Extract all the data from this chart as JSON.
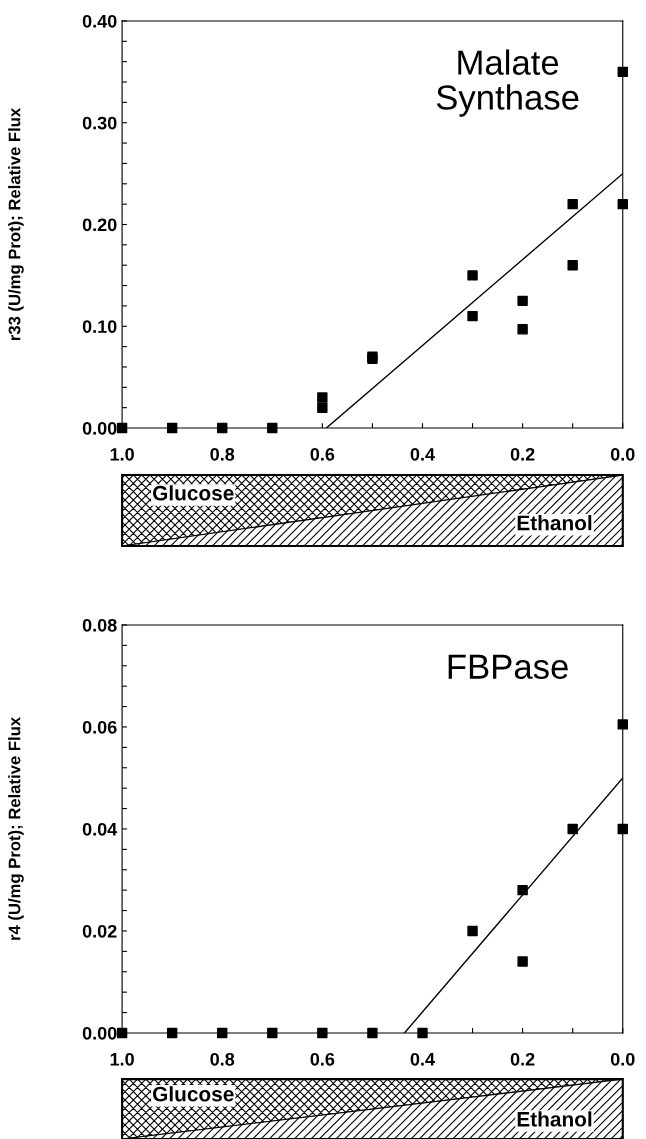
{
  "chart_data": [
    {
      "type": "scatter",
      "title": "Malate\nSynthase",
      "ylabel": "r33 (U/mg Prot); Relative Flux",
      "grid": false,
      "series": [
        {
          "marker": "square",
          "color": "#000000",
          "x": [
            1.0,
            0.9,
            0.8,
            0.7,
            0.6,
            0.6,
            0.5,
            0.5,
            0.3,
            0.3,
            0.2,
            0.2,
            0.1,
            0.1,
            0.0,
            0.0
          ],
          "values": [
            0,
            0,
            0,
            0,
            0.03,
            0.02,
            0.07,
            0.068,
            0.15,
            0.11,
            0.125,
            0.097,
            0.22,
            0.16,
            0.35,
            0.22
          ]
        },
        {
          "type": "line",
          "marker": "none",
          "color": "#000000",
          "x": [
            0.592,
            0.0
          ],
          "values": [
            0,
            0.25
          ]
        }
      ],
      "xlim": [
        1.0,
        0.0
      ],
      "ylim": [
        0.0,
        0.4
      ],
      "xticks": [
        {
          "value": 1.0,
          "label": "1.0"
        },
        {
          "value": 0.9,
          "label": null
        },
        {
          "value": 0.8,
          "label": "0.8"
        },
        {
          "value": 0.7,
          "label": null
        },
        {
          "value": 0.6,
          "label": "0.6"
        },
        {
          "value": 0.5,
          "label": null
        },
        {
          "value": 0.4,
          "label": "0.4"
        },
        {
          "value": 0.3,
          "label": null
        },
        {
          "value": 0.2,
          "label": "0.2"
        },
        {
          "value": 0.1,
          "label": null
        },
        {
          "value": 0.0,
          "label": "0.0"
        }
      ],
      "yticks": [
        {
          "value": 0.0,
          "label": "0.00"
        },
        {
          "value": 0.02,
          "label": null
        },
        {
          "value": 0.04,
          "label": null
        },
        {
          "value": 0.06,
          "label": null
        },
        {
          "value": 0.08,
          "label": null
        },
        {
          "value": 0.1,
          "label": "0.10"
        },
        {
          "value": 0.12,
          "label": null
        },
        {
          "value": 0.14,
          "label": null
        },
        {
          "value": 0.16,
          "label": null
        },
        {
          "value": 0.18,
          "label": null
        },
        {
          "value": 0.2,
          "label": "0.20"
        },
        {
          "value": 0.22,
          "label": null
        },
        {
          "value": 0.24,
          "label": null
        },
        {
          "value": 0.26,
          "label": null
        },
        {
          "value": 0.28,
          "label": null
        },
        {
          "value": 0.3,
          "label": "0.30"
        },
        {
          "value": 0.32,
          "label": null
        },
        {
          "value": 0.34,
          "label": null
        },
        {
          "value": 0.36,
          "label": null
        },
        {
          "value": 0.38,
          "label": null
        },
        {
          "value": 0.4,
          "label": "0.40"
        }
      ],
      "annotations": [
        "Glucose",
        "Ethanol"
      ]
    },
    {
      "type": "scatter",
      "title": "FBPase",
      "ylabel": "r4 (U/mg Prot); Relative Flux",
      "grid": false,
      "series": [
        {
          "marker": "square",
          "color": "#000000",
          "x": [
            1.0,
            0.9,
            0.8,
            0.7,
            0.6,
            0.5,
            0.4,
            0.3,
            0.2,
            0.2,
            0.1,
            0.0,
            0.0
          ],
          "values": [
            0,
            0,
            0,
            0,
            0,
            0,
            0,
            0.02,
            0.028,
            0.014,
            0.04,
            0.0605,
            0.04
          ]
        },
        {
          "type": "line",
          "marker": "none",
          "color": "#000000",
          "x": [
            0.436,
            0.0
          ],
          "values": [
            0,
            0.05
          ]
        }
      ],
      "xlim": [
        1.0,
        0.0
      ],
      "ylim": [
        0.0,
        0.08
      ],
      "xticks": [
        {
          "value": 1.0,
          "label": "1.0"
        },
        {
          "value": 0.9,
          "label": null
        },
        {
          "value": 0.8,
          "label": "0.8"
        },
        {
          "value": 0.7,
          "label": null
        },
        {
          "value": 0.6,
          "label": "0.6"
        },
        {
          "value": 0.5,
          "label": null
        },
        {
          "value": 0.4,
          "label": "0.4"
        },
        {
          "value": 0.3,
          "label": null
        },
        {
          "value": 0.2,
          "label": "0.2"
        },
        {
          "value": 0.1,
          "label": null
        },
        {
          "value": 0.0,
          "label": "0.0"
        }
      ],
      "yticks": [
        {
          "value": 0.0,
          "label": "0.00"
        },
        {
          "value": 0.004,
          "label": null
        },
        {
          "value": 0.008,
          "label": null
        },
        {
          "value": 0.012,
          "label": null
        },
        {
          "value": 0.016,
          "label": null
        },
        {
          "value": 0.02,
          "label": "0.02"
        },
        {
          "value": 0.024,
          "label": null
        },
        {
          "value": 0.028,
          "label": null
        },
        {
          "value": 0.032,
          "label": null
        },
        {
          "value": 0.036,
          "label": null
        },
        {
          "value": 0.04,
          "label": "0.04"
        },
        {
          "value": 0.044,
          "label": null
        },
        {
          "value": 0.048,
          "label": null
        },
        {
          "value": 0.052,
          "label": null
        },
        {
          "value": 0.056,
          "label": null
        },
        {
          "value": 0.06,
          "label": "0.06"
        },
        {
          "value": 0.064,
          "label": null
        },
        {
          "value": 0.068,
          "label": null
        },
        {
          "value": 0.072,
          "label": null
        },
        {
          "value": 0.076,
          "label": null
        },
        {
          "value": 0.08,
          "label": "0.08"
        }
      ],
      "annotations": [
        "Glucose",
        "Ethanol"
      ]
    }
  ]
}
